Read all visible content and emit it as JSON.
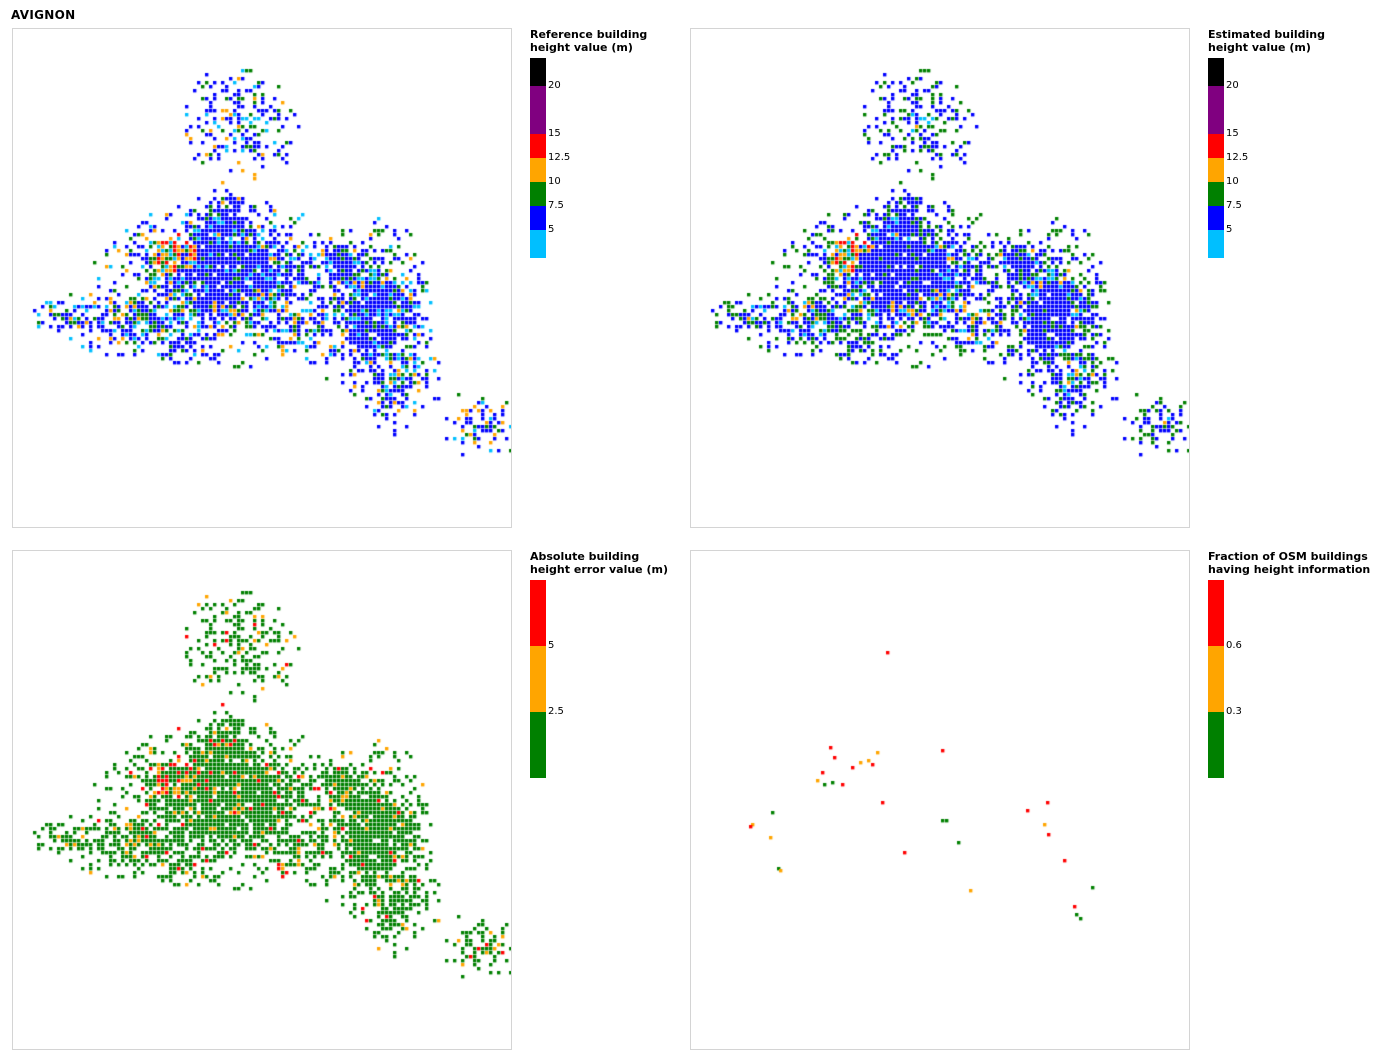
{
  "title": "AVIGNON",
  "maps": [
    {
      "id": "reference",
      "legend_title": [
        "Reference building",
        "height value (m)"
      ],
      "bins": [
        {
          "color": "#000000"
        },
        {
          "color": "#800080",
          "upper_label": "20"
        },
        {
          "color": "#ff0000",
          "upper_label": "15"
        },
        {
          "color": "#ffa500",
          "upper_label": "12.5"
        },
        {
          "color": "#008000",
          "upper_label": "10"
        },
        {
          "color": "#0000ff",
          "upper_label": "7.5"
        },
        {
          "color": "#00bfff",
          "upper_label": "5"
        }
      ],
      "bin_heights": [
        28,
        48,
        24,
        24,
        24,
        24,
        28
      ],
      "map_mode": "reference"
    },
    {
      "id": "estimated",
      "legend_title": [
        "Estimated building",
        "height value (m)"
      ],
      "bins": [
        {
          "color": "#000000"
        },
        {
          "color": "#800080",
          "upper_label": "20"
        },
        {
          "color": "#ff0000",
          "upper_label": "15"
        },
        {
          "color": "#ffa500",
          "upper_label": "12.5"
        },
        {
          "color": "#008000",
          "upper_label": "10"
        },
        {
          "color": "#0000ff",
          "upper_label": "7.5"
        },
        {
          "color": "#00bfff",
          "upper_label": "5"
        }
      ],
      "bin_heights": [
        28,
        48,
        24,
        24,
        24,
        24,
        28
      ],
      "map_mode": "estimated"
    },
    {
      "id": "error",
      "legend_title": [
        "Absolute building",
        "height error value (m)"
      ],
      "bins": [
        {
          "color": "#ff0000"
        },
        {
          "color": "#ffa500",
          "upper_label": "5"
        },
        {
          "color": "#008000",
          "upper_label": "2.5"
        }
      ],
      "bin_heights": [
        66,
        66,
        66
      ],
      "map_mode": "error"
    },
    {
      "id": "osm",
      "legend_title": [
        "Fraction of OSM buildings",
        "having height information"
      ],
      "bins": [
        {
          "color": "#ff0000"
        },
        {
          "color": "#ffa500",
          "upper_label": "0.6"
        },
        {
          "color": "#008000",
          "upper_label": "0.3"
        }
      ],
      "bin_heights": [
        66,
        66,
        66
      ],
      "map_mode": "osm"
    }
  ]
}
